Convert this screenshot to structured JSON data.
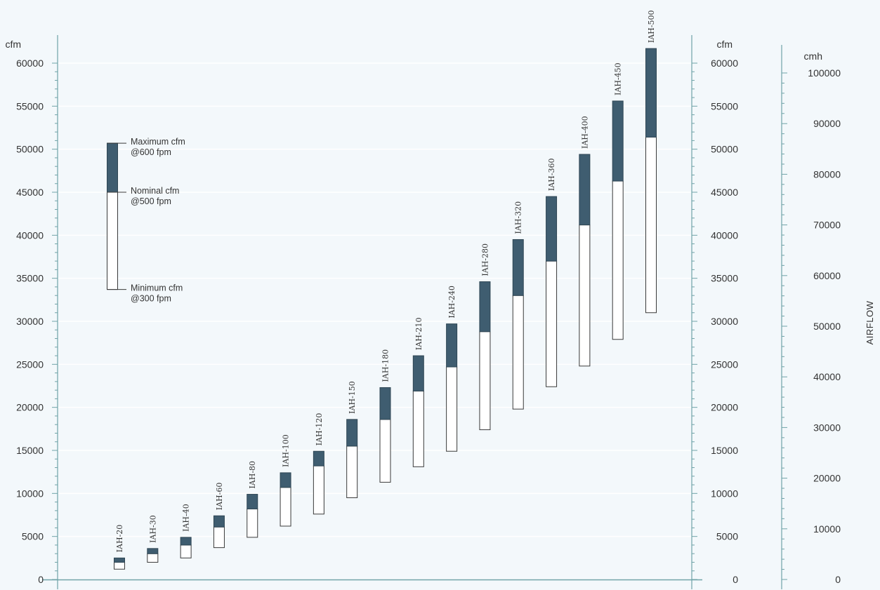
{
  "chart_data": {
    "type": "bar",
    "subtype": "floating-range",
    "axes": {
      "left": {
        "unit": "cfm",
        "min": 0,
        "max": 60000,
        "major_step": 5000,
        "minor_step": 1000
      },
      "right_inner": {
        "unit": "cfm",
        "min": 0,
        "max": 60000,
        "major_step": 5000,
        "minor_step": 1000
      },
      "right_outer": {
        "unit": "cmh",
        "min": 0,
        "max": 100000,
        "major_step": 10000,
        "minor_step": 2000
      },
      "right_title": "AIRFLOW"
    },
    "legend": {
      "max_label": [
        "Maximum cfm",
        "@600 fpm"
      ],
      "nominal_label": [
        "Nominal cfm",
        "@500 fpm"
      ],
      "min_label": [
        "Minimum cfm",
        "@300 fpm"
      ],
      "sample_min": 33700,
      "sample_nominal": 45000,
      "sample_max": 50700
    },
    "categories": [
      "IAH-20",
      "IAH-30",
      "IAH-40",
      "IAH-60",
      "IAH-80",
      "IAH-100",
      "IAH-120",
      "IAH-150",
      "IAH-180",
      "IAH-210",
      "IAH-240",
      "IAH-280",
      "IAH-320",
      "IAH-360",
      "IAH-400",
      "IAH-450",
      "IAH-500"
    ],
    "series": [
      {
        "name": "Minimum cfm @300 fpm",
        "values": [
          1200,
          2000,
          2500,
          3700,
          4900,
          6200,
          7600,
          9500,
          11300,
          13100,
          14900,
          17400,
          19800,
          22400,
          24800,
          27900,
          31000
        ]
      },
      {
        "name": "Nominal cfm @500 fpm",
        "values": [
          2000,
          3000,
          4000,
          6100,
          8200,
          10700,
          13200,
          15500,
          18600,
          21900,
          24700,
          28800,
          33000,
          37000,
          41200,
          46300,
          51400
        ]
      },
      {
        "name": "Maximum cfm @600 fpm",
        "values": [
          2500,
          3600,
          4900,
          7400,
          9900,
          12400,
          14900,
          18600,
          22300,
          26000,
          29700,
          34600,
          39500,
          44500,
          49400,
          55600,
          61700
        ]
      }
    ],
    "colors": {
      "upper_segment": "#3f5d70",
      "lower_segment": "#ffffff",
      "axis": "#6fa3a8",
      "grid": "#ffffff"
    }
  }
}
